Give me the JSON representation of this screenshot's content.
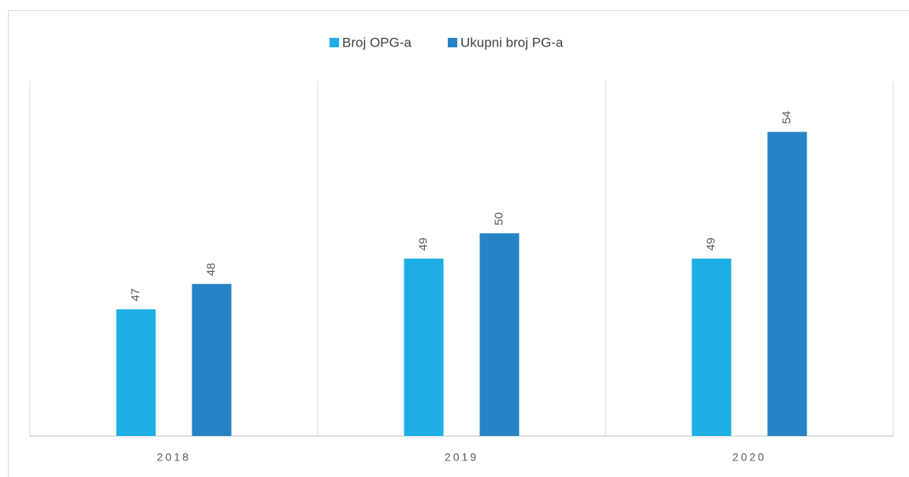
{
  "chart_data": {
    "type": "bar",
    "categories": [
      "2018",
      "2019",
      "2020"
    ],
    "series": [
      {
        "name": "Broj OPG-a",
        "color": "#1eaee5",
        "values": [
          47,
          49,
          49
        ]
      },
      {
        "name": "Ukupni broj PG-a",
        "color": "#2683c6",
        "values": [
          48,
          50,
          54
        ]
      }
    ],
    "ylim": [
      42,
      56
    ],
    "legend": "top"
  }
}
